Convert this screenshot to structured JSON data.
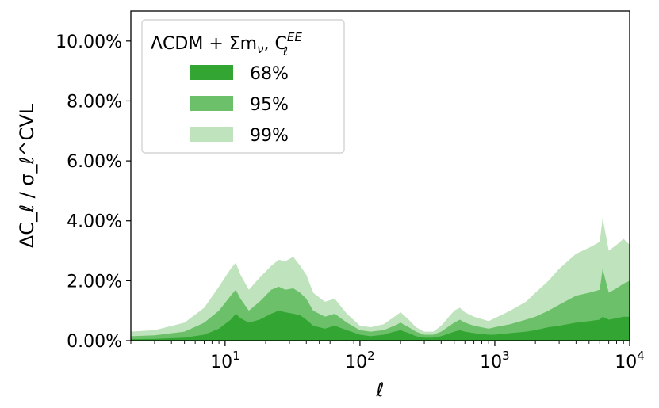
{
  "chart_data": {
    "type": "area",
    "title": "",
    "xlabel": "ℓ",
    "ylabel": "ΔC_ℓ / σ_ℓ^CVL",
    "xscale": "log",
    "xlim": [
      2,
      10000
    ],
    "ylim": [
      0,
      11
    ],
    "yticks": [
      0,
      2,
      4,
      6,
      8,
      10
    ],
    "ytick_labels": [
      "0.00%",
      "2.00%",
      "4.00%",
      "6.00%",
      "8.00%",
      "10.00%"
    ],
    "xticks": [
      10,
      100,
      1000,
      10000
    ],
    "xtick_labels": [
      "10",
      "10",
      "10",
      "10"
    ],
    "xtick_exponents": [
      "1",
      "2",
      "3",
      "4"
    ],
    "grid": false,
    "legend": {
      "placement": "top-left",
      "title_main": "ΛCDM  + Σm",
      "title_sub": "ν",
      "title_tail": ", C",
      "title_sup": "EE",
      "title_subscript": "ℓ"
    },
    "colors": {
      "s68": "#33a532",
      "s95": "#6cc06a",
      "s99": "#bfe3bd"
    },
    "x": [
      2,
      3,
      5,
      7,
      9,
      11,
      12,
      13,
      15,
      18,
      22,
      25,
      28,
      32,
      36,
      40,
      45,
      55,
      65,
      80,
      100,
      120,
      150,
      180,
      200,
      230,
      260,
      300,
      350,
      400,
      500,
      550,
      600,
      700,
      900,
      1000,
      1300,
      1700,
      2000,
      2500,
      3000,
      4000,
      5000,
      6000,
      6300,
      7000,
      8000,
      9000,
      10000
    ],
    "series": [
      {
        "name": "68%",
        "values": [
          0.05,
          0.06,
          0.1,
          0.2,
          0.4,
          0.7,
          0.9,
          0.75,
          0.6,
          0.7,
          0.9,
          1.0,
          0.95,
          0.9,
          0.85,
          0.7,
          0.5,
          0.4,
          0.5,
          0.35,
          0.2,
          0.15,
          0.2,
          0.3,
          0.35,
          0.25,
          0.15,
          0.1,
          0.1,
          0.15,
          0.3,
          0.35,
          0.3,
          0.25,
          0.2,
          0.2,
          0.25,
          0.3,
          0.35,
          0.45,
          0.5,
          0.6,
          0.65,
          0.7,
          0.8,
          0.7,
          0.75,
          0.8,
          0.8
        ]
      },
      {
        "name": "95%",
        "values": [
          0.15,
          0.18,
          0.3,
          0.6,
          1.0,
          1.5,
          1.7,
          1.4,
          1.0,
          1.3,
          1.7,
          1.8,
          1.7,
          1.75,
          1.6,
          1.4,
          1.0,
          0.8,
          0.9,
          0.6,
          0.35,
          0.3,
          0.35,
          0.5,
          0.6,
          0.45,
          0.3,
          0.2,
          0.2,
          0.3,
          0.6,
          0.7,
          0.6,
          0.5,
          0.4,
          0.45,
          0.55,
          0.7,
          0.8,
          1.0,
          1.2,
          1.5,
          1.6,
          1.7,
          2.4,
          1.6,
          1.75,
          1.9,
          2.0
        ]
      },
      {
        "name": "99%",
        "values": [
          0.3,
          0.35,
          0.6,
          1.1,
          1.8,
          2.4,
          2.6,
          2.2,
          1.7,
          2.1,
          2.5,
          2.7,
          2.65,
          2.8,
          2.5,
          2.2,
          1.6,
          1.3,
          1.4,
          0.9,
          0.5,
          0.45,
          0.55,
          0.8,
          0.95,
          0.7,
          0.45,
          0.3,
          0.3,
          0.5,
          1.0,
          1.1,
          0.95,
          0.8,
          0.65,
          0.75,
          1.0,
          1.3,
          1.6,
          2.0,
          2.4,
          2.9,
          3.1,
          3.3,
          4.1,
          3.0,
          3.2,
          3.4,
          3.2
        ]
      }
    ]
  }
}
